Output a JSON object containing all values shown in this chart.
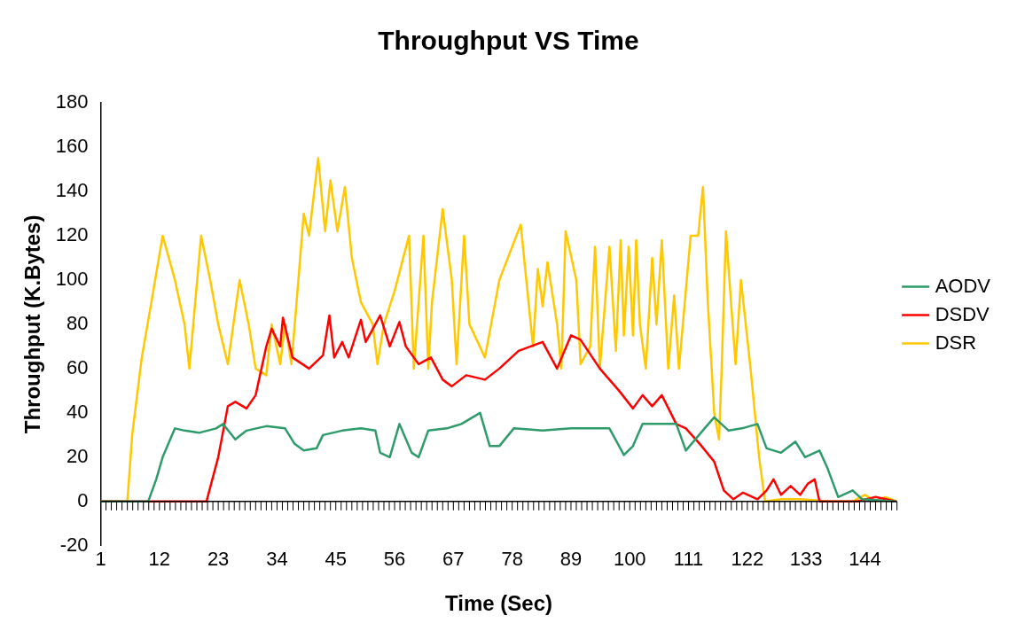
{
  "chart_data": {
    "type": "line",
    "title": "Throughput VS Time",
    "xlabel": "Time (Sec)",
    "ylabel": "Throughput (K.Bytes)",
    "xlim": [
      1,
      150
    ],
    "xticks": [
      1,
      12,
      23,
      34,
      45,
      56,
      67,
      78,
      89,
      100,
      111,
      122,
      133,
      144
    ],
    "ylim": [
      -20,
      180
    ],
    "yticks": [
      -20,
      0,
      20,
      40,
      60,
      80,
      100,
      120,
      140,
      160,
      180
    ],
    "grid": false,
    "legend": "right",
    "marker": "none",
    "line_style": "solid",
    "series": [
      {
        "name": "AODV",
        "color": "#2e9b6a",
        "x": [
          1,
          9.9,
          11.4,
          12.6,
          14.9,
          16.7,
          19.4,
          22.6,
          23.9,
          26.2,
          28.3,
          32,
          35.5,
          37.3,
          39,
          41.4,
          42.6,
          46.2,
          49.7,
          52.4,
          53.3,
          55.1,
          56.9,
          59.2,
          60.5,
          62.3,
          65.8,
          68.5,
          72,
          73.8,
          75.6,
          78.3,
          83.7,
          89,
          94.4,
          96.2,
          98.9,
          100.6,
          102.4,
          108.7,
          110.5,
          114,
          115.8,
          118.5,
          121,
          123.9,
          125.6,
          128.3,
          131,
          132.8,
          135.5,
          137,
          139,
          141.7,
          143.5,
          149.8
        ],
        "values": [
          0,
          0,
          10,
          20,
          33,
          32,
          31,
          33,
          35,
          28,
          32,
          34,
          33,
          26,
          23,
          24,
          30,
          32,
          33,
          32,
          22,
          20,
          35,
          22,
          20,
          32,
          33,
          35,
          40,
          25,
          25,
          33,
          32,
          33,
          33,
          33,
          21,
          25,
          35,
          35,
          23,
          33,
          38,
          32,
          33,
          35,
          24,
          22,
          27,
          20,
          23,
          15,
          2,
          5,
          1,
          0
        ]
      },
      {
        "name": "DSDV",
        "color": "#ff0000",
        "x": [
          1,
          20.8,
          23,
          24.8,
          26.2,
          28.3,
          30,
          32,
          33,
          34.6,
          35.1,
          36.9,
          40,
          42.6,
          43.8,
          44.7,
          46.2,
          47.4,
          49.7,
          50.6,
          53.3,
          55.1,
          56.9,
          58.1,
          60.5,
          62.8,
          65,
          66.7,
          69.4,
          72.9,
          75.6,
          79.2,
          83.7,
          86.4,
          89,
          90.8,
          94.4,
          98,
          100.6,
          102.4,
          104.2,
          106,
          108.7,
          110.5,
          113.1,
          115.8,
          117.6,
          119.4,
          121.2,
          123.9,
          125.6,
          126.9,
          128.3,
          130.1,
          131.9,
          133.3,
          134.6,
          135.5,
          142.6,
          146,
          149.8
        ],
        "values": [
          0,
          0,
          20,
          43,
          45,
          42,
          48,
          70,
          78,
          70,
          83,
          65,
          60,
          66,
          84,
          65,
          72,
          65,
          82,
          72,
          84,
          70,
          81,
          70,
          62,
          65,
          55,
          52,
          57,
          55,
          60,
          68,
          72,
          60,
          75,
          73,
          60,
          50,
          42,
          48,
          43,
          48,
          35,
          33,
          26,
          18,
          5,
          1,
          4,
          1,
          5,
          10,
          3,
          7,
          3,
          8,
          10,
          0,
          0,
          2,
          0
        ]
      },
      {
        "name": "DSR",
        "color": "#ffc800",
        "x": [
          1,
          6,
          6.9,
          8.7,
          10.5,
          12.6,
          14.9,
          16.7,
          17.6,
          19.8,
          21.5,
          23,
          24.8,
          27,
          28.7,
          30,
          32,
          33,
          34.6,
          35.5,
          36.7,
          38,
          39,
          40,
          41.7,
          43,
          44,
          45.3,
          46.7,
          48,
          49.7,
          51.9,
          52.8,
          54,
          56,
          58.7,
          59.6,
          61.4,
          62.3,
          63,
          65,
          66.7,
          67.6,
          69,
          70,
          72.9,
          75.6,
          79.6,
          81.9,
          82.8,
          83.7,
          84.6,
          86.4,
          87.2,
          88,
          90,
          90.8,
          92.6,
          93.5,
          94.4,
          96.2,
          97.4,
          98.3,
          98.9,
          99.8,
          100.6,
          101.2,
          101.9,
          103,
          104.2,
          105,
          106,
          107.2,
          108.3,
          109.2,
          111.4,
          112.8,
          113.7,
          114.6,
          115.8,
          116.7,
          117.2,
          118,
          119,
          119.8,
          120.8,
          122.6,
          124.2,
          125.3,
          128.3,
          131.9,
          137.2,
          141.7,
          144,
          146,
          147.8,
          150
        ],
        "values": [
          0,
          0,
          30,
          65,
          90,
          120,
          100,
          80,
          60,
          120,
          100,
          80,
          62,
          100,
          80,
          60,
          57,
          80,
          62,
          80,
          62,
          100,
          130,
          120,
          155,
          122,
          145,
          122,
          142,
          110,
          90,
          80,
          62,
          80,
          95,
          120,
          60,
          120,
          60,
          90,
          132,
          100,
          62,
          120,
          80,
          65,
          100,
          125,
          70,
          105,
          88,
          108,
          80,
          60,
          122,
          100,
          62,
          70,
          115,
          60,
          115,
          68,
          118,
          75,
          115,
          75,
          118,
          80,
          60,
          110,
          80,
          118,
          60,
          93,
          60,
          120,
          120,
          142,
          90,
          40,
          28,
          60,
          122,
          88,
          62,
          100,
          60,
          20,
          0,
          1,
          1,
          0,
          0,
          3,
          0,
          2,
          0
        ]
      }
    ]
  }
}
